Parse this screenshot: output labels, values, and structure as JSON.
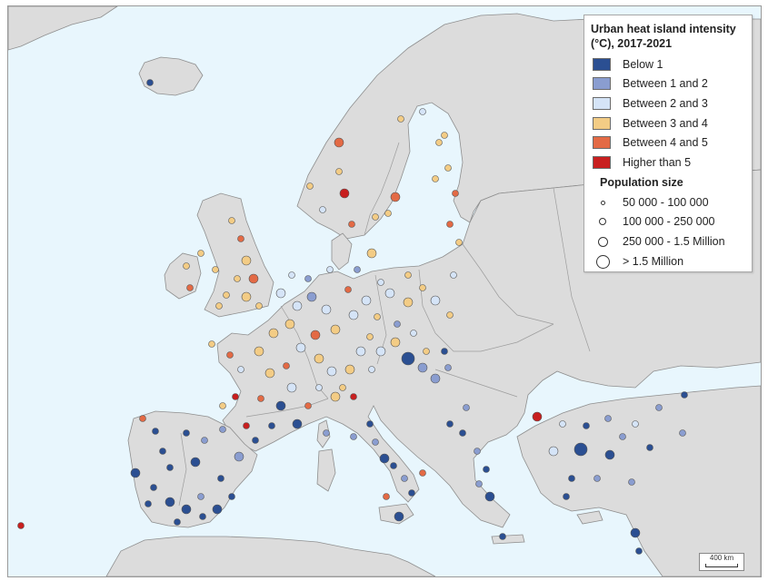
{
  "legend": {
    "title": "Urban heat island intensity (°C), 2017-2021",
    "classes": [
      {
        "label": "Below 1",
        "color": "#2b4f92"
      },
      {
        "label": "Between 1 and 2",
        "color": "#8a9dd0"
      },
      {
        "label": "Between 2 and 3",
        "color": "#d5e4f7"
      },
      {
        "label": "Between 3 and 4",
        "color": "#f3cc85"
      },
      {
        "label": "Between 4 and 5",
        "color": "#e36a45"
      },
      {
        "label": "Higher than 5",
        "color": "#c81f1f"
      }
    ],
    "population_title": "Population size",
    "population_classes": [
      {
        "label": "50 000 - 100 000",
        "icon": "tiny-circle"
      },
      {
        "label": "100 000 - 250 000",
        "icon": "small-circle"
      },
      {
        "label": "250 000 - 1.5 Million",
        "icon": "medium-circle"
      },
      {
        "label": "> 1.5 Million",
        "icon": "large-circle"
      }
    ]
  },
  "scale_bar": {
    "label": "400 km"
  },
  "colors": {
    "sea": "#e8f6fd",
    "land": "#dcdcdc",
    "border": "#8e8e8e"
  }
}
